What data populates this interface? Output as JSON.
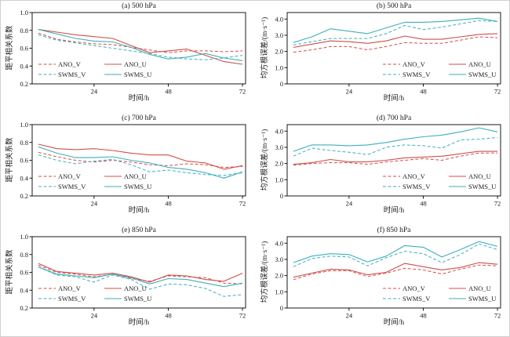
{
  "figure": {
    "background": "#ffffff",
    "border_color": "#cfcfcf",
    "text_color": "#1a1a1a",
    "axis_color": "#000000",
    "accent_colors": {
      "ano_red": "#cf4f4a",
      "swms_teal": "#3eafbc"
    }
  },
  "chart_data": [
    {
      "id": "a",
      "type": "line",
      "title": "(a) 500 hPa",
      "xlabel": "时间/h",
      "ylabel": "距平相关系数",
      "xlim": [
        4,
        73
      ],
      "ylim": [
        0.2,
        1.0
      ],
      "xticks": [
        24,
        48,
        72
      ],
      "yticks": [
        0.2,
        0.4,
        0.6,
        0.8,
        1.0
      ],
      "ytick_labels": [
        "0.2",
        "0.4",
        "0.6",
        "0.8",
        "1.0"
      ],
      "x": [
        6,
        12,
        18,
        24,
        30,
        36,
        42,
        48,
        54,
        60,
        66,
        72
      ],
      "legend_position": "lower-left",
      "grid": false,
      "series": [
        {
          "name": "ANO_V",
          "color": "#cf4f4a",
          "dash": true,
          "values": [
            0.77,
            0.7,
            0.67,
            0.65,
            0.64,
            0.61,
            0.58,
            0.55,
            0.57,
            0.57,
            0.56,
            0.57
          ]
        },
        {
          "name": "ANO_U",
          "color": "#cf4f4a",
          "dash": false,
          "values": [
            0.81,
            0.78,
            0.75,
            0.73,
            0.71,
            0.63,
            0.55,
            0.57,
            0.59,
            0.52,
            0.45,
            0.42
          ]
        },
        {
          "name": "SWMS_V",
          "color": "#3eafbc",
          "dash": true,
          "values": [
            0.75,
            0.69,
            0.66,
            0.63,
            0.6,
            0.57,
            0.54,
            0.5,
            0.48,
            0.47,
            0.49,
            0.52
          ]
        },
        {
          "name": "SWMS_U",
          "color": "#3eafbc",
          "dash": false,
          "values": [
            0.81,
            0.76,
            0.71,
            0.68,
            0.67,
            0.61,
            0.53,
            0.48,
            0.5,
            0.54,
            0.49,
            0.46
          ]
        }
      ]
    },
    {
      "id": "b",
      "type": "line",
      "title": "(b) 500 hPa",
      "xlabel": "时间/h",
      "ylabel": "均方根误差/(m·s⁻¹)",
      "xlim": [
        4,
        73
      ],
      "ylim": [
        0,
        4.4
      ],
      "xticks": [
        24,
        48,
        72
      ],
      "yticks": [
        0,
        1.0,
        2.0,
        3.0,
        4.0
      ],
      "ytick_labels": [
        "0",
        "1.0",
        "2.0",
        "3.0",
        "4.0"
      ],
      "x": [
        6,
        12,
        18,
        24,
        30,
        36,
        42,
        48,
        54,
        60,
        66,
        72
      ],
      "legend_position": "lower-right",
      "grid": false,
      "series": [
        {
          "name": "ANO_V",
          "color": "#cf4f4a",
          "dash": true,
          "values": [
            1.95,
            2.1,
            2.3,
            2.3,
            2.1,
            2.3,
            2.55,
            2.5,
            2.5,
            2.7,
            2.9,
            2.85
          ]
        },
        {
          "name": "ANO_U",
          "color": "#cf4f4a",
          "dash": false,
          "values": [
            2.25,
            2.45,
            2.65,
            2.6,
            2.5,
            2.65,
            2.95,
            2.75,
            2.75,
            2.9,
            3.05,
            3.1
          ]
        },
        {
          "name": "SWMS_V",
          "color": "#3eafbc",
          "dash": true,
          "values": [
            2.4,
            2.6,
            2.8,
            2.8,
            2.8,
            3.1,
            3.6,
            3.35,
            3.5,
            3.7,
            3.9,
            3.85
          ]
        },
        {
          "name": "SWMS_U",
          "color": "#3eafbc",
          "dash": false,
          "values": [
            2.55,
            2.9,
            3.4,
            3.25,
            3.1,
            3.45,
            3.8,
            3.8,
            3.85,
            3.95,
            4.05,
            3.85
          ]
        }
      ]
    },
    {
      "id": "c",
      "type": "line",
      "title": "(c) 700 hPa",
      "xlabel": "时间/h",
      "ylabel": "距平相关系数",
      "xlim": [
        4,
        73
      ],
      "ylim": [
        0.2,
        1.0
      ],
      "xticks": [
        24,
        48,
        72
      ],
      "yticks": [
        0.2,
        0.4,
        0.6,
        0.8,
        1.0
      ],
      "ytick_labels": [
        "0.2",
        "0.4",
        "0.6",
        "0.8",
        "1.0"
      ],
      "x": [
        6,
        12,
        18,
        24,
        30,
        36,
        42,
        48,
        54,
        60,
        66,
        72
      ],
      "legend_position": "lower-left",
      "grid": false,
      "series": [
        {
          "name": "ANO_V",
          "color": "#cf4f4a",
          "dash": true,
          "values": [
            0.69,
            0.64,
            0.6,
            0.58,
            0.6,
            0.58,
            0.55,
            0.54,
            0.56,
            0.55,
            0.52,
            0.53
          ]
        },
        {
          "name": "ANO_U",
          "color": "#cf4f4a",
          "dash": false,
          "values": [
            0.78,
            0.73,
            0.72,
            0.73,
            0.71,
            0.68,
            0.66,
            0.66,
            0.59,
            0.57,
            0.5,
            0.54
          ]
        },
        {
          "name": "SWMS_V",
          "color": "#3eafbc",
          "dash": true,
          "values": [
            0.66,
            0.6,
            0.56,
            0.59,
            0.61,
            0.55,
            0.47,
            0.49,
            0.46,
            0.44,
            0.43,
            0.46
          ]
        },
        {
          "name": "SWMS_U",
          "color": "#3eafbc",
          "dash": false,
          "values": [
            0.75,
            0.68,
            0.63,
            0.63,
            0.64,
            0.6,
            0.57,
            0.52,
            0.5,
            0.46,
            0.4,
            0.47
          ]
        }
      ]
    },
    {
      "id": "d",
      "type": "line",
      "title": "(d) 700 hPa",
      "xlabel": "时间/h",
      "ylabel": "均方根误差/(m·s⁻¹)",
      "xlim": [
        4,
        73
      ],
      "ylim": [
        0,
        4.4
      ],
      "xticks": [
        24,
        48,
        72
      ],
      "yticks": [
        0,
        1.0,
        2.0,
        3.0,
        4.0
      ],
      "ytick_labels": [
        "0",
        "1.0",
        "2.0",
        "3.0",
        "4.0"
      ],
      "x": [
        6,
        12,
        18,
        24,
        30,
        36,
        42,
        48,
        54,
        60,
        66,
        72
      ],
      "legend_position": "lower-right",
      "grid": false,
      "series": [
        {
          "name": "ANO_V",
          "color": "#cf4f4a",
          "dash": true,
          "values": [
            1.9,
            2.0,
            2.05,
            2.05,
            1.95,
            2.1,
            2.2,
            2.3,
            2.2,
            2.45,
            2.65,
            2.65
          ]
        },
        {
          "name": "ANO_U",
          "color": "#cf4f4a",
          "dash": false,
          "values": [
            1.95,
            2.05,
            2.25,
            2.1,
            2.1,
            2.2,
            2.35,
            2.4,
            2.45,
            2.6,
            2.75,
            2.75
          ]
        },
        {
          "name": "SWMS_V",
          "color": "#3eafbc",
          "dash": true,
          "values": [
            2.45,
            2.95,
            2.8,
            2.7,
            2.55,
            3.0,
            3.15,
            3.1,
            2.95,
            3.45,
            3.5,
            3.6
          ]
        },
        {
          "name": "SWMS_U",
          "color": "#3eafbc",
          "dash": false,
          "values": [
            2.75,
            3.15,
            3.15,
            3.1,
            3.15,
            3.3,
            3.5,
            3.65,
            3.75,
            3.95,
            4.2,
            3.95
          ]
        }
      ]
    },
    {
      "id": "e",
      "type": "line",
      "title": "(e) 850 hPa",
      "xlabel": "时间/h",
      "ylabel": "距平相关系数",
      "xlim": [
        4,
        73
      ],
      "ylim": [
        0.2,
        1.0
      ],
      "xticks": [
        24,
        48,
        72
      ],
      "yticks": [
        0.2,
        0.4,
        0.6,
        0.8,
        1.0
      ],
      "ytick_labels": [
        "0.2",
        "0.4",
        "0.6",
        "0.8",
        "1.0"
      ],
      "x": [
        6,
        12,
        18,
        24,
        30,
        36,
        42,
        48,
        54,
        60,
        66,
        72
      ],
      "legend_position": "lower-left",
      "grid": false,
      "series": [
        {
          "name": "ANO_V",
          "color": "#cf4f4a",
          "dash": true,
          "values": [
            0.68,
            0.6,
            0.58,
            0.55,
            0.58,
            0.53,
            0.5,
            0.56,
            0.55,
            0.54,
            0.48,
            0.47
          ]
        },
        {
          "name": "ANO_U",
          "color": "#cf4f4a",
          "dash": false,
          "values": [
            0.7,
            0.61,
            0.59,
            0.57,
            0.59,
            0.55,
            0.49,
            0.57,
            0.56,
            0.52,
            0.5,
            0.59
          ]
        },
        {
          "name": "SWMS_V",
          "color": "#3eafbc",
          "dash": true,
          "values": [
            0.66,
            0.57,
            0.55,
            0.49,
            0.57,
            0.52,
            0.41,
            0.47,
            0.46,
            0.42,
            0.33,
            0.35
          ]
        },
        {
          "name": "SWMS_U",
          "color": "#3eafbc",
          "dash": false,
          "values": [
            0.66,
            0.58,
            0.56,
            0.54,
            0.58,
            0.54,
            0.47,
            0.53,
            0.52,
            0.48,
            0.44,
            0.48
          ]
        }
      ]
    },
    {
      "id": "f",
      "type": "line",
      "title": "(f) 850 hPa",
      "xlabel": "时间/h",
      "ylabel": "均方根误差/(m·s⁻¹)",
      "xlim": [
        4,
        73
      ],
      "ylim": [
        0,
        4.4
      ],
      "xticks": [
        24,
        48,
        72
      ],
      "yticks": [
        0,
        1.0,
        2.0,
        3.0,
        4.0
      ],
      "ytick_labels": [
        "0",
        "1.0",
        "2.0",
        "3.0",
        "4.0"
      ],
      "x": [
        6,
        12,
        18,
        24,
        30,
        36,
        42,
        48,
        54,
        60,
        66,
        72
      ],
      "legend_position": "lower-right",
      "grid": false,
      "series": [
        {
          "name": "ANO_V",
          "color": "#cf4f4a",
          "dash": true,
          "values": [
            1.75,
            2.1,
            2.3,
            2.3,
            1.95,
            2.15,
            2.45,
            2.35,
            2.1,
            2.4,
            2.65,
            2.6
          ]
        },
        {
          "name": "ANO_U",
          "color": "#cf4f4a",
          "dash": false,
          "values": [
            1.9,
            2.15,
            2.4,
            2.35,
            2.05,
            2.2,
            2.75,
            2.55,
            2.35,
            2.5,
            2.8,
            2.7
          ]
        },
        {
          "name": "SWMS_V",
          "color": "#3eafbc",
          "dash": true,
          "values": [
            2.55,
            3.05,
            3.2,
            3.15,
            2.6,
            3.1,
            3.5,
            3.35,
            2.8,
            3.3,
            3.95,
            3.6
          ]
        },
        {
          "name": "SWMS_U",
          "color": "#3eafbc",
          "dash": false,
          "values": [
            2.8,
            3.2,
            3.35,
            3.3,
            2.85,
            3.2,
            3.85,
            3.75,
            3.15,
            3.6,
            4.1,
            3.8
          ]
        }
      ]
    }
  ]
}
